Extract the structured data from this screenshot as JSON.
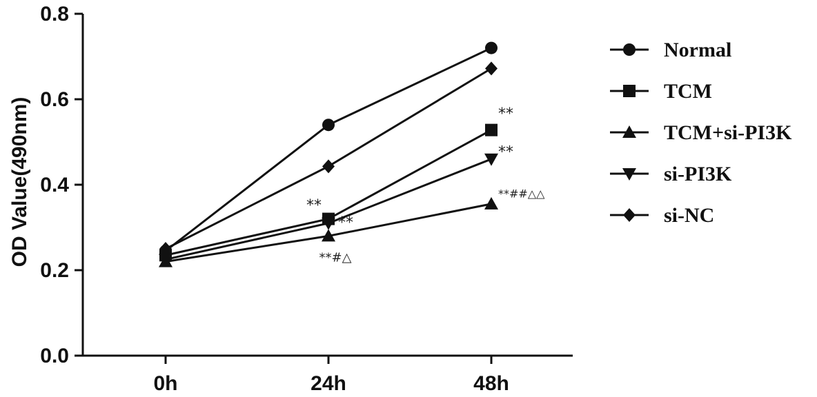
{
  "chart_data": {
    "type": "line",
    "title": "",
    "xlabel": "",
    "ylabel": "OD Value(490nm)",
    "categories": [
      "0h",
      "24h",
      "48h"
    ],
    "ylim": [
      0.0,
      0.8
    ],
    "yticks": [
      "0.0",
      "0.2",
      "0.4",
      "0.6",
      "0.8"
    ],
    "grid": false,
    "legend_position": "right",
    "series": [
      {
        "name": "Normal",
        "marker": "circle",
        "values": [
          0.245,
          0.54,
          0.72
        ]
      },
      {
        "name": "TCM",
        "marker": "square",
        "values": [
          0.235,
          0.32,
          0.528
        ]
      },
      {
        "name": "TCM+si-PI3K",
        "marker": "triangle-up",
        "values": [
          0.22,
          0.28,
          0.355
        ]
      },
      {
        "name": "si-PI3K",
        "marker": "triangle-down",
        "values": [
          0.225,
          0.31,
          0.46
        ]
      },
      {
        "name": "si-NC",
        "marker": "diamond",
        "values": [
          0.25,
          0.443,
          0.672
        ]
      }
    ],
    "annotations": [
      {
        "text": "**",
        "category": "24h",
        "value": 0.34
      },
      {
        "text": "**",
        "category": "24h",
        "value": 0.3
      },
      {
        "text": "**#△",
        "category": "24h",
        "value": 0.22
      },
      {
        "text": "**",
        "category": "48h",
        "value": 0.555
      },
      {
        "text": "**",
        "category": "48h",
        "value": 0.465
      },
      {
        "text": "**##△△",
        "category": "48h",
        "value": 0.37
      }
    ]
  },
  "colors": {
    "ink": "#111111"
  }
}
